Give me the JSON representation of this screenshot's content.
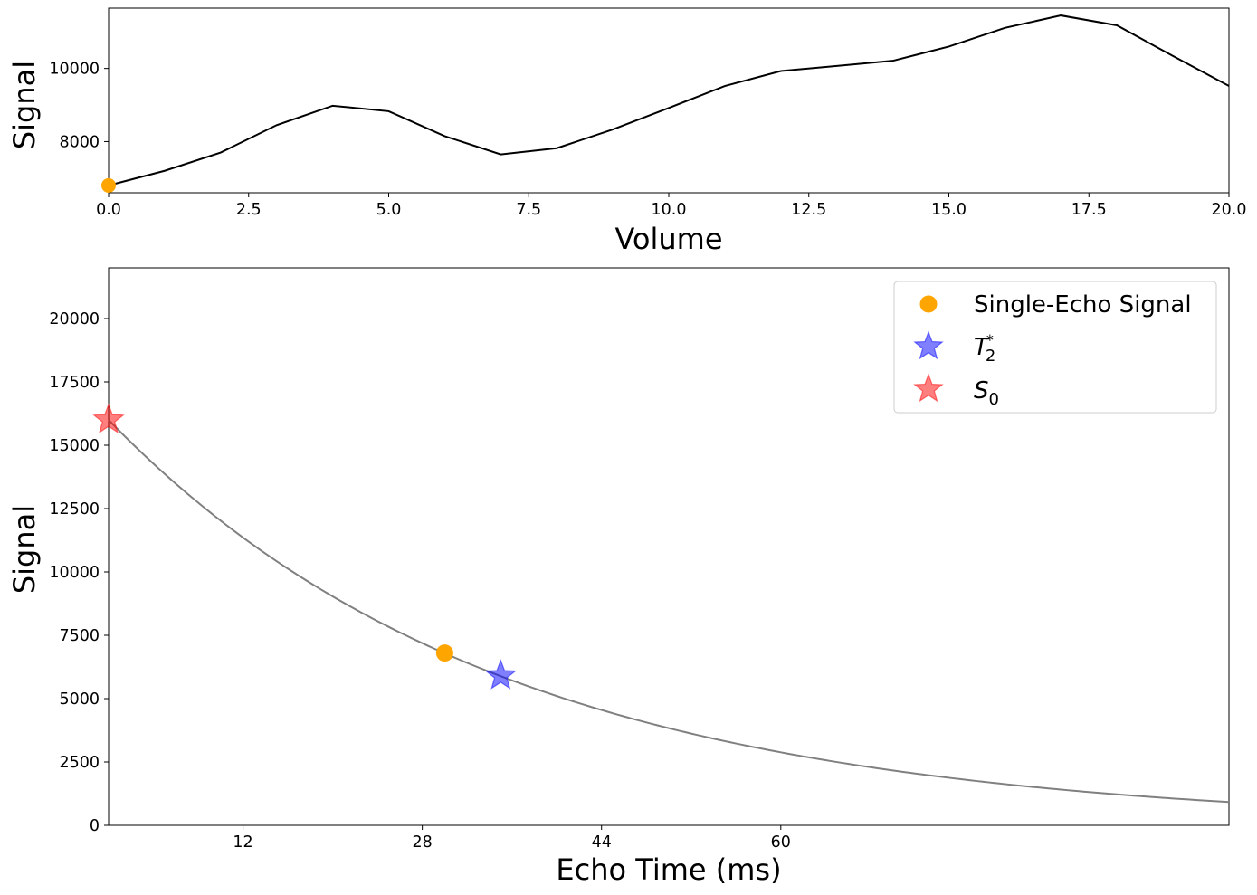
{
  "chart_data": [
    {
      "type": "line",
      "xlabel": "Volume",
      "ylabel": "Signal",
      "xlim": [
        0,
        20
      ],
      "ylim": [
        6600,
        11650
      ],
      "x_ticks": [
        0,
        2.5,
        5,
        7.5,
        10,
        12.5,
        15,
        17.5,
        20
      ],
      "x_tick_labels": [
        "0.0",
        "2.5",
        "5.0",
        "7.5",
        "10.0",
        "12.5",
        "15.0",
        "17.5",
        "20.0"
      ],
      "y_ticks": [
        8000,
        10000
      ],
      "y_tick_labels": [
        "8000",
        "10000"
      ],
      "grid": false,
      "series": [
        {
          "x": [
            0,
            1,
            2,
            3,
            4,
            5,
            6,
            7,
            8,
            9,
            10,
            11,
            12,
            13,
            14,
            15,
            16,
            17,
            18,
            19,
            20
          ],
          "values": [
            6800,
            7200,
            7700,
            8450,
            8980,
            8830,
            8150,
            7650,
            7820,
            8330,
            8920,
            9520,
            9930,
            10070,
            10210,
            10600,
            11110,
            11450,
            11180,
            10340,
            9520
          ],
          "color": "#000000"
        }
      ],
      "highlight_point": {
        "x": 0,
        "y": 6800,
        "color": "#ffa500"
      }
    },
    {
      "type": "scatter",
      "xlabel": "Echo Time (ms)",
      "ylabel": "Signal",
      "xlim": [
        0,
        100
      ],
      "ylim": [
        0,
        22000
      ],
      "x_ticks": [
        12,
        28,
        44,
        60
      ],
      "x_tick_labels": [
        "12",
        "28",
        "44",
        "60"
      ],
      "y_ticks": [
        0,
        2500,
        5000,
        7500,
        10000,
        12500,
        15000,
        17500,
        20000
      ],
      "y_tick_labels": [
        "0",
        "2500",
        "5000",
        "7500",
        "10000",
        "12500",
        "15000",
        "17500",
        "20000"
      ],
      "grid": false,
      "legend_position": "top-right",
      "decay_curve": {
        "s0": 16000,
        "t2star": 35,
        "color": "#808080"
      },
      "points": [
        {
          "name": "Single-Echo Signal",
          "x": 30,
          "y": 6800,
          "marker": "circle",
          "color": "#ffa500"
        },
        {
          "name": "T2*",
          "x": 35,
          "y": 5900,
          "marker": "star",
          "color": "#0000ff"
        },
        {
          "name": "S0",
          "x": 0,
          "y": 16000,
          "marker": "star",
          "color": "#ff0000"
        }
      ],
      "legend": {
        "single_echo_label": "Single-Echo Signal",
        "t2_main": "T",
        "t2_sub": "2",
        "t2_sup": "*",
        "s0_main": "S",
        "s0_sub": "0"
      }
    }
  ]
}
